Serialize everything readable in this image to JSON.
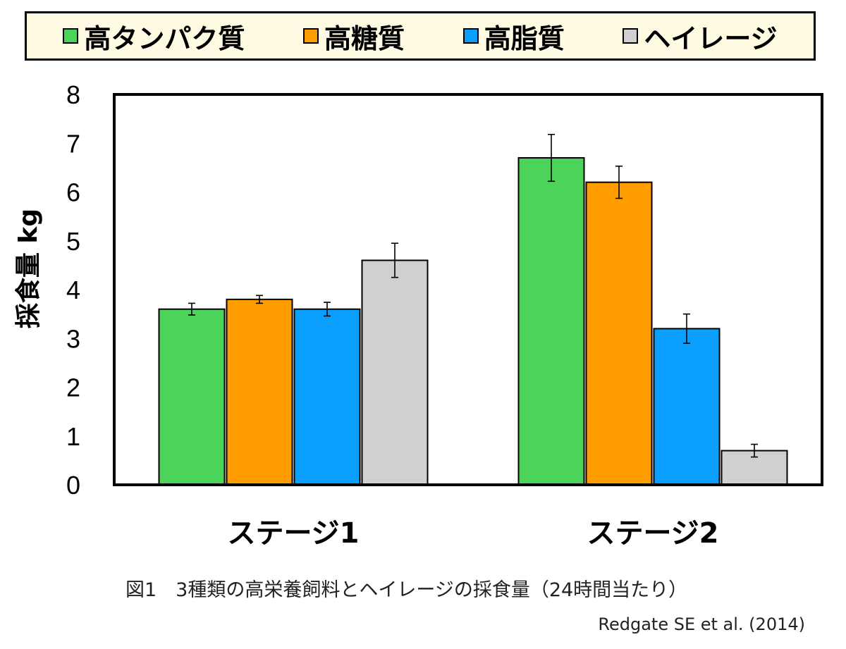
{
  "chart_data": {
    "type": "bar",
    "categories": [
      "ステージ1",
      "ステージ2"
    ],
    "series": [
      {
        "name": "高タンパク質",
        "color": "#4cd45a",
        "values": [
          3.6,
          6.7
        ],
        "errors": [
          0.12,
          0.48
        ]
      },
      {
        "name": "高糖質",
        "color": "#ff9d00",
        "values": [
          3.8,
          6.2
        ],
        "errors": [
          0.08,
          0.33
        ]
      },
      {
        "name": "高脂質",
        "color": "#0a9eff",
        "values": [
          3.6,
          3.2
        ],
        "errors": [
          0.14,
          0.3
        ]
      },
      {
        "name": "ヘイレージ",
        "color": "#d0d0d0",
        "values": [
          4.6,
          0.7
        ],
        "errors": [
          0.35,
          0.13
        ]
      }
    ],
    "title": "",
    "xlabel": "",
    "ylabel": "採食量 kg",
    "ylim": [
      0,
      8
    ],
    "yticks": [
      "0",
      "1",
      "2",
      "3",
      "4",
      "5",
      "6",
      "7",
      "8"
    ],
    "grid": false,
    "legend_position": "top"
  },
  "caption": "図1　3種類の高栄養飼料とヘイレージの採食量（24時間当たり）",
  "source": "Redgate SE et al. (2014)"
}
